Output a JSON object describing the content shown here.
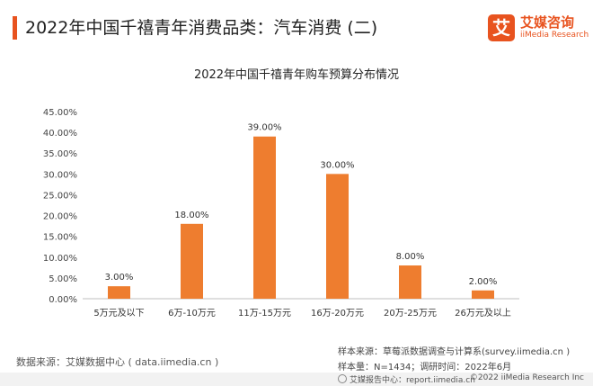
{
  "header": {
    "title": "2022年中国千禧青年消费品类：汽车消费 (二)",
    "logo_mark": "艾",
    "logo_cn": "艾媒咨询",
    "logo_en": "iiMedia Research",
    "accent_color": "#e8531f"
  },
  "chart_data": {
    "type": "bar",
    "title": "2022年中国千禧青年购车预算分布情况",
    "categories": [
      "5万元及以下",
      "6万-10万元",
      "11万-15万元",
      "16万-20万元",
      "20万-25万元",
      "26万元及以上"
    ],
    "values": [
      3.0,
      18.0,
      39.0,
      30.0,
      8.0,
      2.0
    ],
    "data_labels": [
      "3.00%",
      "18.00%",
      "39.00%",
      "30.00%",
      "8.00%",
      "2.00%"
    ],
    "ylim": [
      0,
      45
    ],
    "yticks": [
      0,
      5,
      10,
      15,
      20,
      25,
      30,
      35,
      40,
      45
    ],
    "ytick_labels": [
      "0.00%",
      "5.00%",
      "10.00%",
      "15.00%",
      "20.00%",
      "25.00%",
      "30.00%",
      "35.00%",
      "40.00%",
      "45.00%"
    ],
    "bar_color": "#ee7d2f",
    "grid": false,
    "xlabel": "",
    "ylabel": ""
  },
  "footer": {
    "data_source": "数据来源：艾媒数据中心 ( data.iimedia.cn )",
    "sample_source": "样本来源：草莓派数据调查与计算系(survey.iimedia.cn )",
    "sample_size": "样本量：N=1434；调研时间：2022年6月",
    "report_center": "艾媒报告中心：report.iimedia.cn",
    "copyright": "©2022 iiMedia Research Inc"
  }
}
